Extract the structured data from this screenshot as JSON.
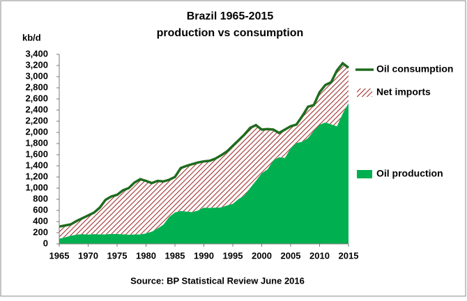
{
  "chart_data": {
    "type": "stacked-area",
    "title": "Brazil 1965-2015",
    "subtitle": "production vs consumption",
    "y_label": "kb/d",
    "source": "Source: BP Statistical Review  June 2016",
    "x": [
      1965,
      1966,
      1967,
      1968,
      1969,
      1970,
      1971,
      1972,
      1973,
      1974,
      1975,
      1976,
      1977,
      1978,
      1979,
      1980,
      1981,
      1982,
      1983,
      1984,
      1985,
      1986,
      1987,
      1988,
      1989,
      1990,
      1991,
      1992,
      1993,
      1994,
      1995,
      1996,
      1997,
      1998,
      1999,
      2000,
      2001,
      2002,
      2003,
      2004,
      2005,
      2006,
      2007,
      2008,
      2009,
      2010,
      2011,
      2012,
      2013,
      2014,
      2015
    ],
    "series": [
      {
        "name": "Oil production",
        "color": "#00b050",
        "kind": "area",
        "values": [
          94,
          117,
          147,
          165,
          175,
          167,
          175,
          170,
          170,
          180,
          177,
          172,
          165,
          168,
          170,
          188,
          220,
          277,
          345,
          485,
          565,
          590,
          580,
          570,
          600,
          650,
          645,
          650,
          655,
          690,
          718,
          807,
          868,
          1004,
          1133,
          1268,
          1337,
          1499,
          1555,
          1542,
          1716,
          1809,
          1833,
          1899,
          2029,
          2137,
          2179,
          2145,
          2110,
          2341,
          2527
        ]
      },
      {
        "name": "Net imports",
        "color": "#c0504d",
        "kind": "hatched-area",
        "values": [
          216,
          213,
          203,
          245,
          285,
          343,
          385,
          480,
          620,
          670,
          703,
          788,
          835,
          932,
          990,
          942,
          870,
          853,
          775,
          665,
          635,
          770,
          820,
          860,
          860,
          830,
          845,
          880,
          935,
          970,
          1042,
          1053,
          1092,
          1076,
          997,
          782,
          723,
          551,
          435,
          508,
          394,
          331,
          457,
          561,
          461,
          583,
          671,
          755,
          1000,
          899,
          633
        ]
      },
      {
        "name": "Oil consumption",
        "color": "#1e6b1e",
        "kind": "line",
        "values": [
          310,
          330,
          350,
          410,
          460,
          510,
          560,
          650,
          790,
          850,
          880,
          960,
          1000,
          1100,
          1160,
          1130,
          1090,
          1130,
          1120,
          1150,
          1200,
          1360,
          1400,
          1430,
          1460,
          1480,
          1490,
          1530,
          1590,
          1660,
          1760,
          1860,
          1960,
          2080,
          2130,
          2050,
          2060,
          2050,
          1990,
          2050,
          2110,
          2140,
          2290,
          2460,
          2490,
          2720,
          2850,
          2900,
          3110,
          3240,
          3160
        ]
      }
    ],
    "xlim": [
      1965,
      2015
    ],
    "xticks": [
      1965,
      1970,
      1975,
      1980,
      1985,
      1990,
      1995,
      2000,
      2005,
      2010,
      2015
    ],
    "ylim": [
      0,
      3400
    ],
    "yticks": [
      0,
      200,
      400,
      600,
      800,
      {
        "value": 1000,
        "label": "1,000"
      },
      {
        "value": 1200,
        "label": "1,200"
      },
      {
        "value": 1400,
        "label": "1,400"
      },
      {
        "value": 1600,
        "label": "1,600"
      },
      {
        "value": 1800,
        "label": "1,800"
      },
      {
        "value": 2000,
        "label": "2,000"
      },
      {
        "value": 2200,
        "label": "2,200"
      },
      {
        "value": 2400,
        "label": "2,400"
      },
      {
        "value": 2600,
        "label": "2,600"
      },
      {
        "value": 2800,
        "label": "2,800"
      },
      {
        "value": 3000,
        "label": "3,000"
      },
      {
        "value": 3200,
        "label": "3,200"
      },
      {
        "value": 3400,
        "label": "3,400"
      }
    ],
    "grid": false
  }
}
